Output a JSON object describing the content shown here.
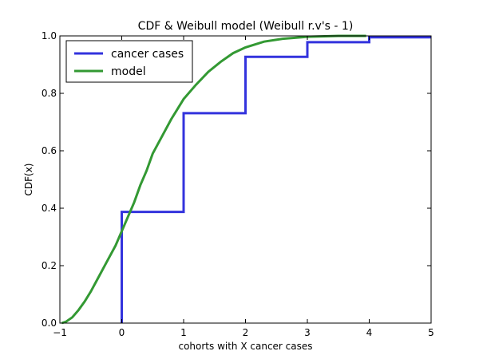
{
  "chart_data": {
    "type": "line",
    "title": "CDF & Weibull model (Weibull r.v's - 1)",
    "xlabel": "cohorts with X cancer cases",
    "ylabel": "CDF(x)",
    "xlim": [
      -1,
      5
    ],
    "ylim": [
      0,
      1
    ],
    "xticks": [
      -1,
      0,
      1,
      2,
      3,
      4,
      5
    ],
    "xtick_labels": [
      "−1",
      "0",
      "1",
      "2",
      "3",
      "4",
      "5"
    ],
    "yticks": [
      0,
      0.2,
      0.4,
      0.6,
      0.8,
      1.0
    ],
    "ytick_labels": [
      "0.0",
      "0.2",
      "0.4",
      "0.6",
      "0.8",
      "1.0"
    ],
    "grid": false,
    "legend_position": "top-left",
    "series": [
      {
        "name": "cancer cases",
        "color": "#3333dd",
        "step": true,
        "x": [
          0,
          0,
          1,
          1,
          2,
          2,
          3,
          3,
          4,
          4,
          5
        ],
        "y": [
          0,
          0.387,
          0.387,
          0.731,
          0.731,
          0.927,
          0.927,
          0.978,
          0.978,
          0.995,
          0.995
        ]
      },
      {
        "name": "model",
        "color": "#339933",
        "step": false,
        "x": [
          -0.97,
          -0.9,
          -0.8,
          -0.7,
          -0.6,
          -0.5,
          -0.4,
          -0.3,
          -0.2,
          -0.1,
          0.0,
          0.1,
          0.2,
          0.3,
          0.4,
          0.5,
          0.6,
          0.7,
          0.8,
          0.9,
          1.0,
          1.2,
          1.4,
          1.6,
          1.8,
          2.0,
          2.3,
          2.6,
          3.0,
          3.5,
          3.95
        ],
        "y": [
          0.0,
          0.005,
          0.02,
          0.045,
          0.075,
          0.11,
          0.15,
          0.19,
          0.23,
          0.27,
          0.32,
          0.37,
          0.42,
          0.48,
          0.53,
          0.59,
          0.63,
          0.67,
          0.71,
          0.745,
          0.78,
          0.83,
          0.875,
          0.91,
          0.94,
          0.96,
          0.98,
          0.99,
          0.997,
          1.0,
          1.0
        ]
      }
    ]
  }
}
